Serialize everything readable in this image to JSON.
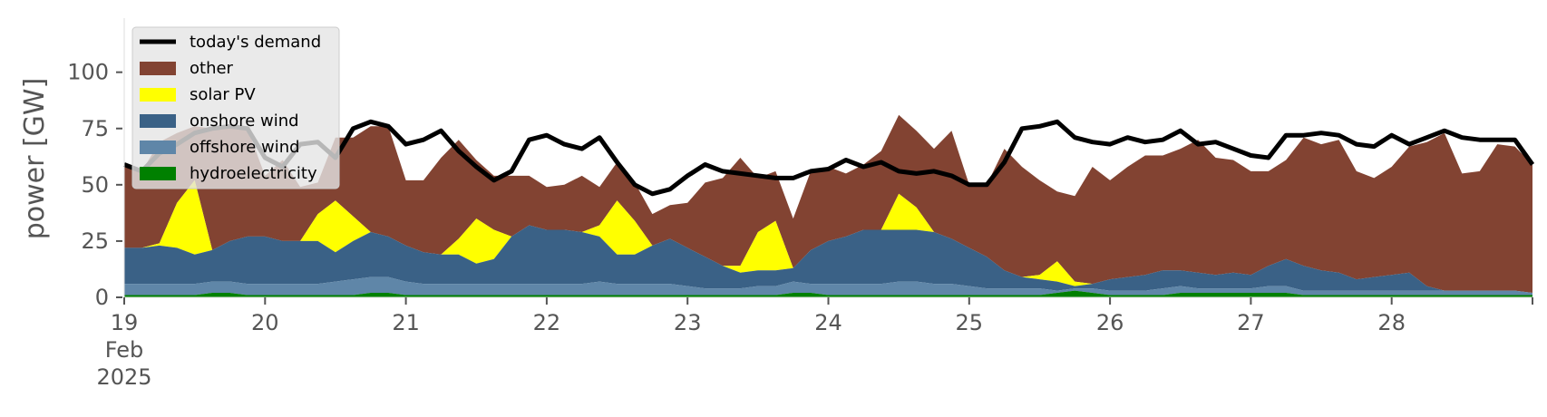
{
  "chart_data": {
    "type": "area",
    "title": "",
    "xlabel": "",
    "ylabel": "power [GW]",
    "ylim": [
      0,
      120
    ],
    "yticks": [
      0,
      25,
      50,
      75,
      100
    ],
    "xlim": [
      0,
      10
    ],
    "xticks": [
      {
        "day": 0,
        "label": "19",
        "sub1": "Feb",
        "sub2": "2025"
      },
      {
        "day": 1,
        "label": "20"
      },
      {
        "day": 2,
        "label": "21"
      },
      {
        "day": 3,
        "label": "22"
      },
      {
        "day": 4,
        "label": "23"
      },
      {
        "day": 5,
        "label": "24"
      },
      {
        "day": 6,
        "label": "25"
      },
      {
        "day": 7,
        "label": "26"
      },
      {
        "day": 8,
        "label": "27"
      },
      {
        "day": 9,
        "label": "28"
      }
    ],
    "grid": false,
    "legend_position": "upper-left",
    "x": [
      0,
      0.125,
      0.25,
      0.375,
      0.5,
      0.625,
      0.75,
      0.875,
      1,
      1.125,
      1.25,
      1.375,
      1.5,
      1.625,
      1.75,
      1.875,
      2,
      2.125,
      2.25,
      2.375,
      2.5,
      2.625,
      2.75,
      2.875,
      3,
      3.125,
      3.25,
      3.375,
      3.5,
      3.625,
      3.75,
      3.875,
      4,
      4.125,
      4.25,
      4.375,
      4.5,
      4.625,
      4.75,
      4.875,
      5,
      5.125,
      5.25,
      5.375,
      5.5,
      5.625,
      5.75,
      5.875,
      6,
      6.125,
      6.25,
      6.375,
      6.5,
      6.625,
      6.75,
      6.875,
      7,
      7.125,
      7.25,
      7.375,
      7.5,
      7.625,
      7.75,
      7.875,
      8,
      8.125,
      8.25,
      8.375,
      8.5,
      8.625,
      8.75,
      8.875,
      9,
      9.125,
      9.25,
      9.375,
      9.5,
      9.625,
      9.75,
      9.875,
      10
    ],
    "series": [
      {
        "name": "hydroelectricity",
        "color": "#008000",
        "values": [
          1,
          1,
          1,
          1,
          1,
          2,
          2,
          1,
          1,
          1,
          1,
          1,
          1,
          1,
          2,
          2,
          1,
          1,
          1,
          1,
          1,
          1,
          1,
          1,
          1,
          1,
          1,
          1,
          1,
          1,
          1,
          1,
          1,
          1,
          1,
          1,
          1,
          1,
          2,
          2,
          1,
          1,
          1,
          1,
          1,
          1,
          1,
          1,
          1,
          1,
          1,
          1,
          1,
          2,
          3,
          2,
          1,
          1,
          1,
          1,
          2,
          2,
          2,
          2,
          2,
          2,
          2,
          1,
          1,
          1,
          1,
          1,
          1,
          1,
          1,
          1,
          1,
          1,
          1,
          1,
          1
        ]
      },
      {
        "name": "offshore wind",
        "color": "#5f86a8",
        "values": [
          5,
          5,
          5,
          5,
          5,
          5,
          5,
          5,
          5,
          5,
          5,
          5,
          6,
          7,
          7,
          7,
          6,
          5,
          5,
          5,
          5,
          5,
          5,
          5,
          5,
          5,
          5,
          6,
          5,
          5,
          5,
          5,
          4,
          3,
          3,
          3,
          4,
          4,
          5,
          4,
          5,
          5,
          5,
          5,
          6,
          6,
          5,
          5,
          4,
          3,
          3,
          3,
          3,
          1,
          1,
          2,
          2,
          2,
          2,
          3,
          3,
          2,
          2,
          2,
          2,
          3,
          3,
          2,
          2,
          2,
          2,
          2,
          2,
          2,
          2,
          2,
          2,
          2,
          2,
          2,
          1
        ]
      },
      {
        "name": "onshore wind",
        "color": "#3a6186",
        "values": [
          16,
          16,
          17,
          16,
          13,
          14,
          18,
          21,
          21,
          19,
          19,
          19,
          13,
          17,
          20,
          18,
          16,
          14,
          13,
          13,
          9,
          11,
          21,
          26,
          24,
          24,
          23,
          20,
          13,
          13,
          17,
          20,
          17,
          14,
          10,
          7,
          7,
          7,
          6,
          15,
          19,
          21,
          24,
          24,
          23,
          23,
          23,
          20,
          17,
          14,
          8,
          5,
          4,
          4,
          1,
          2,
          5,
          6,
          7,
          8,
          7,
          7,
          6,
          7,
          6,
          9,
          12,
          11,
          9,
          8,
          5,
          6,
          7,
          8,
          2,
          0,
          0,
          0,
          0,
          0,
          0
        ]
      },
      {
        "name": "solar PV",
        "color": "#ffff00",
        "values": [
          0,
          0,
          1,
          20,
          33,
          0,
          0,
          0,
          0,
          0,
          0,
          12,
          23,
          11,
          0,
          0,
          0,
          0,
          0,
          7,
          20,
          13,
          0,
          0,
          0,
          0,
          0,
          5,
          24,
          15,
          0,
          0,
          0,
          0,
          0,
          3,
          17,
          22,
          0,
          0,
          0,
          0,
          0,
          0,
          16,
          10,
          0,
          0,
          0,
          0,
          0,
          0,
          2,
          9,
          2,
          0,
          0,
          0,
          0,
          0,
          0,
          0,
          0,
          0,
          0,
          0,
          0,
          0,
          0,
          0,
          0,
          0,
          0,
          0,
          0,
          0,
          0,
          0,
          0,
          0,
          0
        ]
      },
      {
        "name": "other",
        "color": "#824332",
        "values": [
          37,
          34,
          45,
          31,
          24,
          54,
          51,
          48,
          27,
          36,
          24,
          14,
          28,
          35,
          47,
          49,
          29,
          32,
          43,
          44,
          26,
          24,
          27,
          22,
          19,
          20,
          25,
          17,
          17,
          17,
          14,
          15,
          20,
          33,
          39,
          48,
          24,
          22,
          22,
          35,
          33,
          28,
          29,
          35,
          35,
          34,
          37,
          48,
          28,
          32,
          54,
          49,
          42,
          31,
          38,
          52,
          44,
          49,
          53,
          51,
          54,
          59,
          52,
          50,
          46,
          42,
          44,
          57,
          56,
          59,
          48,
          44,
          48,
          56,
          64,
          70,
          52,
          53,
          65,
          64,
          57
        ]
      }
    ],
    "demand": {
      "name": "today's demand",
      "color": "#000000",
      "values": [
        59,
        56,
        64,
        68,
        73,
        75,
        76,
        75,
        62,
        58,
        68,
        69,
        62,
        75,
        78,
        76,
        68,
        70,
        74,
        65,
        58,
        52,
        56,
        70,
        72,
        68,
        66,
        71,
        60,
        50,
        46,
        48,
        54,
        59,
        56,
        55,
        54,
        53,
        53,
        56,
        57,
        61,
        58,
        60,
        56,
        55,
        56,
        54,
        50,
        50,
        60,
        75,
        76,
        78,
        71,
        69,
        68,
        71,
        69,
        70,
        74,
        68,
        69,
        66,
        63,
        62,
        72,
        72,
        73,
        72,
        68,
        67,
        72,
        68,
        71,
        74,
        71,
        70,
        70,
        70,
        59
      ]
    }
  }
}
